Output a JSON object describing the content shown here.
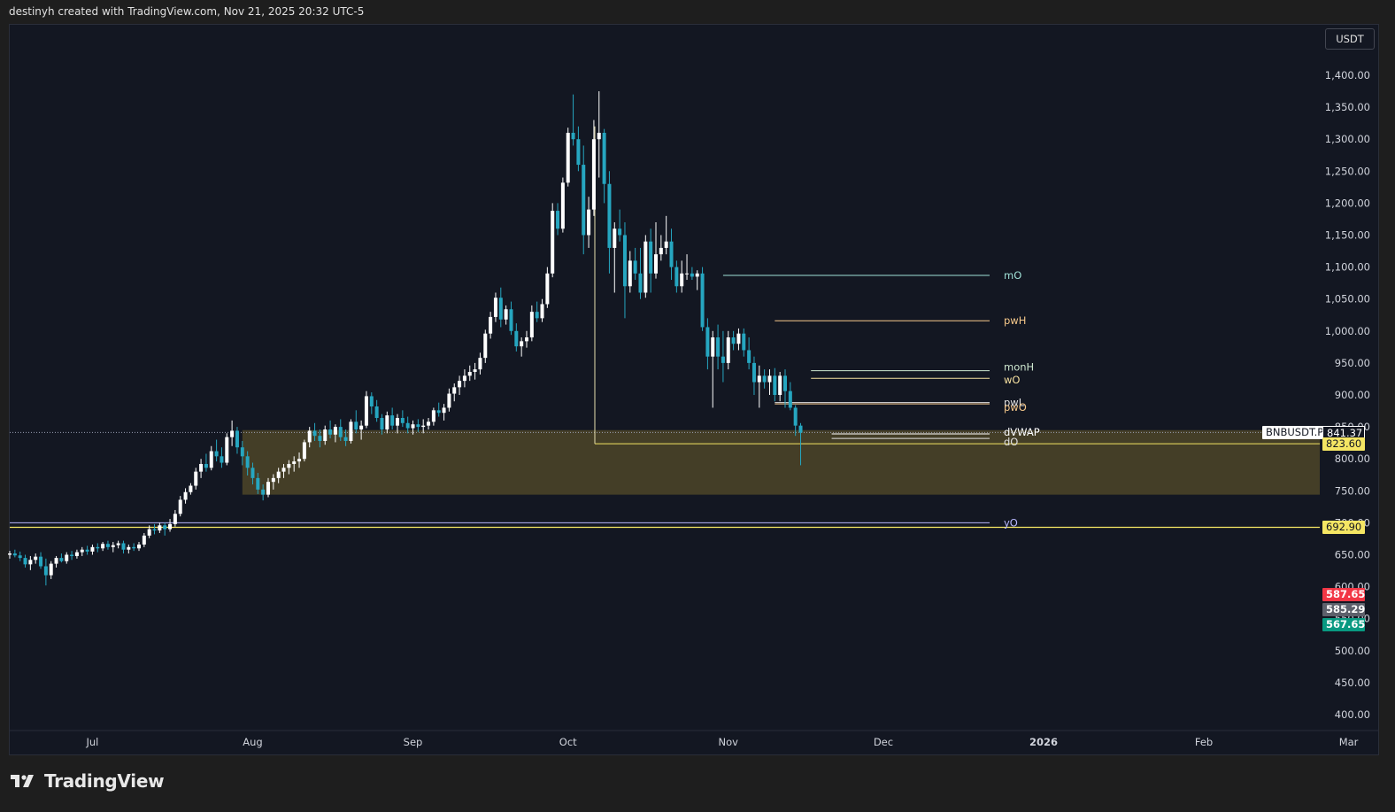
{
  "header": {
    "caption": "destinyh created with TradingView.com, Nov 21, 2025 20:32 UTC-5"
  },
  "footer": {
    "brand": "TradingView"
  },
  "currency_button": "USDT",
  "symbol_tag": "BNBUSDT.P",
  "price_tags": {
    "last": "841.37",
    "level_a": "823.60",
    "level_b": "692.90",
    "red": "587.65",
    "gray": "585.29",
    "green": "567.65"
  },
  "colors": {
    "background": "#131722",
    "bull": "#ffffff",
    "bear": "#26a6c0",
    "zone": "#4a4228",
    "yellow_line": "#f5e663",
    "red_tag": "#f23645",
    "green_tag": "#089981",
    "gray_tag": "#5d606b"
  },
  "chart_data": {
    "type": "candlestick",
    "symbol": "BNBUSDT.P",
    "interval": "1D",
    "currency": "USDT",
    "y_axis": {
      "range": [
        380,
        1440
      ],
      "ticks": [
        "1,400.00",
        "1,350.00",
        "1,300.00",
        "1,250.00",
        "1,200.00",
        "1,150.00",
        "1,100.00",
        "1,050.00",
        "1,000.00",
        "950.00",
        "900.00",
        "850.00",
        "800.00",
        "750.00",
        "700.00",
        "650.00",
        "600.00",
        "550.00",
        "500.00",
        "450.00",
        "400.00"
      ]
    },
    "x_axis": {
      "ticks": [
        "Jul",
        "Aug",
        "Sep",
        "Oct",
        "Nov",
        "Dec",
        "2026",
        "Feb",
        "Mar"
      ],
      "start": "2025-06-15",
      "end": "2026-03-04"
    },
    "ohlc_daily_from_2025-06-15": [
      [
        650,
        656,
        644,
        652
      ],
      [
        652,
        658,
        646,
        649
      ],
      [
        649,
        655,
        640,
        645
      ],
      [
        645,
        650,
        630,
        635
      ],
      [
        635,
        648,
        626,
        642
      ],
      [
        642,
        652,
        636,
        647
      ],
      [
        647,
        654,
        628,
        632
      ],
      [
        632,
        644,
        602,
        618
      ],
      [
        618,
        640,
        612,
        636
      ],
      [
        636,
        648,
        630,
        645
      ],
      [
        645,
        652,
        638,
        640
      ],
      [
        640,
        654,
        636,
        650
      ],
      [
        650,
        656,
        642,
        648
      ],
      [
        648,
        658,
        644,
        654
      ],
      [
        654,
        662,
        648,
        658
      ],
      [
        658,
        664,
        650,
        655
      ],
      [
        655,
        666,
        650,
        662
      ],
      [
        662,
        668,
        654,
        660
      ],
      [
        660,
        670,
        656,
        667
      ],
      [
        667,
        672,
        658,
        662
      ],
      [
        662,
        670,
        654,
        665
      ],
      [
        665,
        672,
        660,
        668
      ],
      [
        668,
        672,
        652,
        658
      ],
      [
        658,
        666,
        652,
        662
      ],
      [
        662,
        668,
        656,
        660
      ],
      [
        660,
        670,
        656,
        666
      ],
      [
        666,
        684,
        662,
        680
      ],
      [
        680,
        696,
        676,
        690
      ],
      [
        690,
        698,
        682,
        688
      ],
      [
        688,
        700,
        684,
        696
      ],
      [
        696,
        700,
        680,
        690
      ],
      [
        690,
        706,
        686,
        698
      ],
      [
        698,
        720,
        694,
        714
      ],
      [
        714,
        742,
        710,
        736
      ],
      [
        736,
        754,
        730,
        748
      ],
      [
        748,
        762,
        744,
        758
      ],
      [
        758,
        786,
        752,
        780
      ],
      [
        780,
        800,
        770,
        792
      ],
      [
        792,
        808,
        780,
        786
      ],
      [
        786,
        820,
        782,
        812
      ],
      [
        812,
        830,
        796,
        804
      ],
      [
        804,
        818,
        786,
        794
      ],
      [
        794,
        840,
        790,
        834
      ],
      [
        834,
        860,
        820,
        844
      ],
      [
        844,
        850,
        808,
        818
      ],
      [
        818,
        828,
        790,
        804
      ],
      [
        804,
        812,
        774,
        786
      ],
      [
        786,
        794,
        760,
        770
      ],
      [
        770,
        778,
        745,
        752
      ],
      [
        752,
        760,
        735,
        744
      ],
      [
        744,
        770,
        740,
        764
      ],
      [
        764,
        776,
        752,
        770
      ],
      [
        770,
        786,
        762,
        780
      ],
      [
        780,
        792,
        770,
        786
      ],
      [
        786,
        798,
        776,
        792
      ],
      [
        792,
        804,
        780,
        796
      ],
      [
        796,
        810,
        786,
        800
      ],
      [
        800,
        830,
        796,
        826
      ],
      [
        826,
        850,
        818,
        844
      ],
      [
        844,
        856,
        828,
        836
      ],
      [
        836,
        846,
        818,
        828
      ],
      [
        828,
        852,
        822,
        846
      ],
      [
        846,
        860,
        832,
        838
      ],
      [
        838,
        854,
        826,
        850
      ],
      [
        850,
        862,
        828,
        834
      ],
      [
        834,
        846,
        820,
        828
      ],
      [
        828,
        862,
        824,
        858
      ],
      [
        858,
        876,
        840,
        846
      ],
      [
        846,
        860,
        830,
        852
      ],
      [
        852,
        906,
        848,
        898
      ],
      [
        898,
        904,
        870,
        882
      ],
      [
        882,
        892,
        858,
        864
      ],
      [
        864,
        870,
        838,
        846
      ],
      [
        846,
        874,
        840,
        868
      ],
      [
        868,
        880,
        846,
        852
      ],
      [
        852,
        870,
        840,
        864
      ],
      [
        864,
        876,
        850,
        856
      ],
      [
        856,
        866,
        840,
        848
      ],
      [
        848,
        860,
        838,
        854
      ],
      [
        854,
        862,
        842,
        850
      ],
      [
        850,
        862,
        840,
        852
      ],
      [
        852,
        864,
        846,
        858
      ],
      [
        858,
        880,
        852,
        876
      ],
      [
        876,
        888,
        866,
        872
      ],
      [
        872,
        886,
        860,
        880
      ],
      [
        880,
        910,
        874,
        902
      ],
      [
        902,
        918,
        890,
        912
      ],
      [
        912,
        930,
        900,
        922
      ],
      [
        922,
        940,
        912,
        930
      ],
      [
        930,
        946,
        922,
        936
      ],
      [
        936,
        950,
        924,
        940
      ],
      [
        940,
        966,
        932,
        958
      ],
      [
        958,
        1002,
        950,
        996
      ],
      [
        996,
        1030,
        988,
        1022
      ],
      [
        1022,
        1060,
        1014,
        1052
      ],
      [
        1052,
        1068,
        1006,
        1018
      ],
      [
        1018,
        1040,
        1010,
        1034
      ],
      [
        1034,
        1046,
        994,
        1000
      ],
      [
        1000,
        1012,
        968,
        976
      ],
      [
        976,
        990,
        960,
        984
      ],
      [
        984,
        1000,
        974,
        990
      ],
      [
        990,
        1040,
        984,
        1030
      ],
      [
        1030,
        1046,
        1014,
        1020
      ],
      [
        1020,
        1050,
        1014,
        1042
      ],
      [
        1042,
        1100,
        1036,
        1090
      ],
      [
        1090,
        1200,
        1084,
        1188
      ],
      [
        1188,
        1200,
        1150,
        1160
      ],
      [
        1160,
        1240,
        1154,
        1232
      ],
      [
        1232,
        1318,
        1226,
        1310
      ],
      [
        1310,
        1370,
        1290,
        1300
      ],
      [
        1300,
        1320,
        1250,
        1260
      ],
      [
        1260,
        1290,
        1120,
        1150
      ],
      [
        1150,
        1210,
        1130,
        1190
      ],
      [
        1190,
        1330,
        1180,
        1300
      ],
      [
        1300,
        1375,
        1240,
        1310
      ],
      [
        1310,
        1316,
        1200,
        1230
      ],
      [
        1230,
        1250,
        1090,
        1130
      ],
      [
        1130,
        1170,
        1060,
        1160
      ],
      [
        1160,
        1190,
        1140,
        1150
      ],
      [
        1150,
        1170,
        1020,
        1070
      ],
      [
        1070,
        1125,
        1060,
        1110
      ],
      [
        1110,
        1130,
        1080,
        1090
      ],
      [
        1090,
        1130,
        1050,
        1060
      ],
      [
        1060,
        1150,
        1052,
        1140
      ],
      [
        1140,
        1160,
        1060,
        1090
      ],
      [
        1090,
        1170,
        1082,
        1120
      ],
      [
        1120,
        1150,
        1110,
        1130
      ],
      [
        1130,
        1180,
        1120,
        1140
      ],
      [
        1140,
        1160,
        1080,
        1100
      ],
      [
        1100,
        1110,
        1060,
        1070
      ],
      [
        1070,
        1110,
        1060,
        1090
      ],
      [
        1090,
        1120,
        1080,
        1090
      ],
      [
        1090,
        1100,
        1080,
        1085
      ],
      [
        1085,
        1095,
        1064,
        1090
      ],
      [
        1090,
        1100,
        1000,
        1006
      ],
      [
        1006,
        1020,
        940,
        960
      ],
      [
        960,
        1000,
        880,
        990
      ],
      [
        990,
        1010,
        940,
        960
      ],
      [
        960,
        1000,
        920,
        950
      ],
      [
        950,
        1000,
        940,
        990
      ],
      [
        990,
        1000,
        970,
        980
      ],
      [
        980,
        1004,
        970,
        996
      ],
      [
        996,
        1004,
        960,
        970
      ],
      [
        970,
        990,
        940,
        950
      ],
      [
        950,
        960,
        900,
        920
      ],
      [
        920,
        946,
        880,
        930
      ],
      [
        930,
        940,
        910,
        920
      ],
      [
        920,
        940,
        900,
        930
      ],
      [
        930,
        942,
        890,
        900
      ],
      [
        900,
        936,
        890,
        930
      ],
      [
        930,
        940,
        880,
        906
      ],
      [
        906,
        920,
        876,
        880
      ],
      [
        880,
        884,
        836,
        852
      ],
      [
        852,
        856,
        790,
        841
      ]
    ],
    "levels": [
      {
        "label": "mO",
        "price": 1087
      },
      {
        "label": "pwH",
        "price": 1016
      },
      {
        "label": "monH",
        "price": 938
      },
      {
        "label": "wO",
        "price": 926
      },
      {
        "label": "pwL",
        "price": 888
      },
      {
        "label": "pwO",
        "price": 886
      },
      {
        "label": "dVWAP",
        "price": 839
      },
      {
        "label": "dO",
        "price": 832
      },
      {
        "label": "yO",
        "price": 700
      }
    ],
    "horizontal_lines": [
      823.6,
      692.9,
      841.37
    ],
    "zone": {
      "high": 845,
      "low": 744,
      "start": "2025-07-30"
    }
  }
}
